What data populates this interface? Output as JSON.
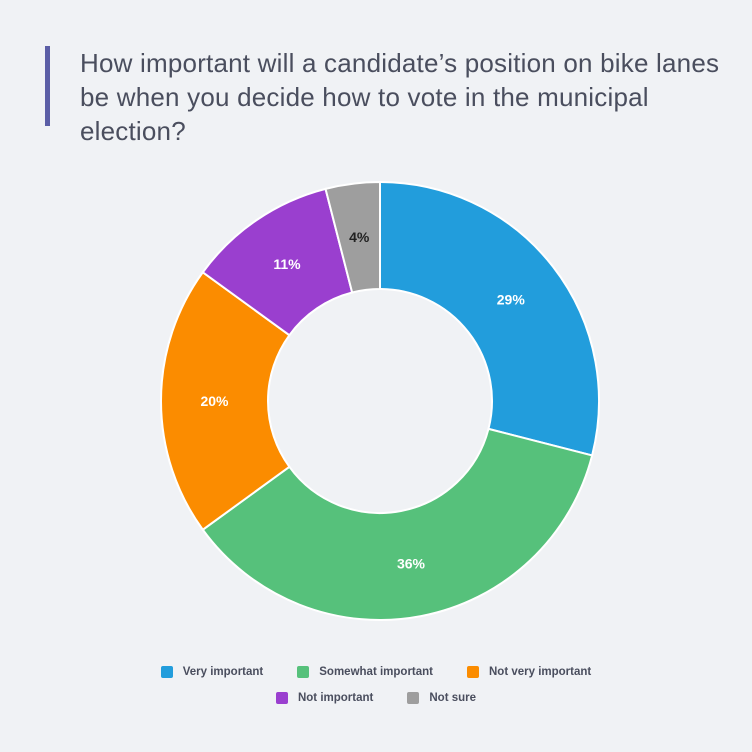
{
  "title": "How important will a candidate’s position on bike lanes be when you decide how to vote in the municipal election?",
  "chart_data": {
    "type": "pie",
    "donut": true,
    "title": "How important will a candidate’s position on bike lanes be when you decide how to vote in the municipal election?",
    "categories": [
      "Very important",
      "Somewhat important",
      "Not very important",
      "Not important",
      "Not sure"
    ],
    "values": [
      29,
      36,
      20,
      11,
      4
    ],
    "labels": [
      "29%",
      "36%",
      "20%",
      "11%",
      "4%"
    ],
    "colors": [
      "#229ddc",
      "#56c17b",
      "#fb8c00",
      "#9a3fcf",
      "#9e9e9e"
    ],
    "label_colors": [
      "#ffffff",
      "#ffffff",
      "#ffffff",
      "#ffffff",
      "#222222"
    ],
    "legend_position": "bottom"
  },
  "colors": {
    "background": "#f0f2f5",
    "accent_bar": "#5b5ea6",
    "text": "#4a4e5e"
  }
}
